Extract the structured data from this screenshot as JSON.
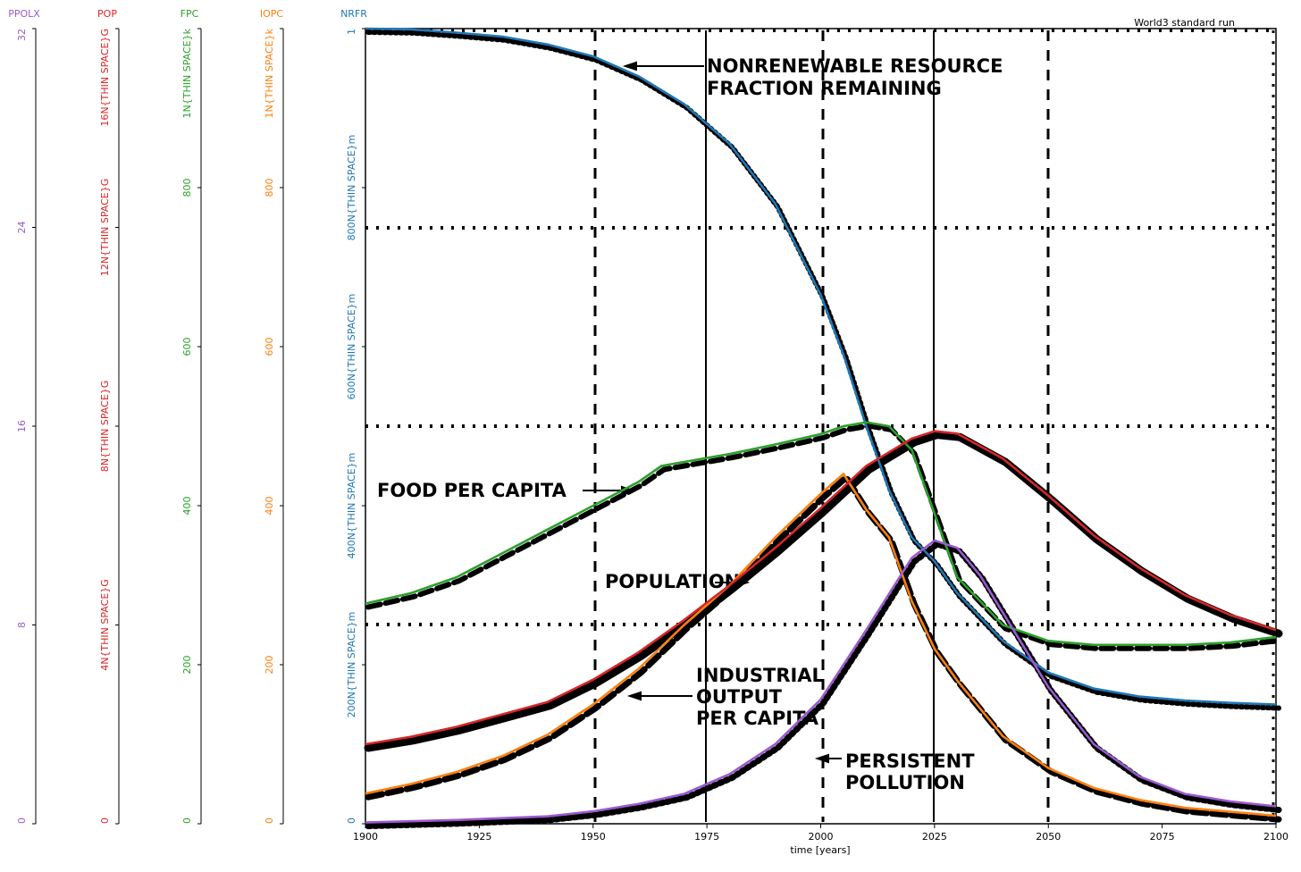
{
  "chart_data": {
    "type": "line",
    "title": "World3 standard run",
    "xlabel": "time [years]",
    "xlim": [
      1900,
      2100
    ],
    "x_ticks": [
      "1900",
      "1925",
      "1950",
      "1975",
      "2000",
      "2025",
      "2050",
      "2075",
      "2100"
    ],
    "grid": true,
    "axes": [
      {
        "name": "PPOLX",
        "color": "#9b59d0",
        "ylim": [
          0,
          32
        ],
        "ticks": [
          "0",
          "8",
          "16",
          "24",
          "32"
        ]
      },
      {
        "name": "POP",
        "color": "#d62728",
        "ylim": [
          0,
          16000000000
        ],
        "ticks": [
          "0",
          "4N{THIN SPACE}G",
          "8N{THIN SPACE}G",
          "12N{THIN SPACE}G",
          "16N{THIN SPACE}G"
        ]
      },
      {
        "name": "FPC",
        "color": "#2ca02c",
        "ylim": [
          0,
          1000
        ],
        "ticks": [
          "0",
          "200",
          "400",
          "600",
          "800",
          "1N{THIN SPACE}k"
        ]
      },
      {
        "name": "IOPC",
        "color": "#ff7f0e",
        "ylim": [
          0,
          1000
        ],
        "ticks": [
          "0",
          "200",
          "400",
          "600",
          "800",
          "1N{THIN SPACE}k"
        ]
      },
      {
        "name": "NRFR",
        "color": "#1f77b4",
        "ylim": [
          0,
          1
        ],
        "ticks": [
          "0",
          "200N{THIN SPACE}m",
          "400N{THIN SPACE}m",
          "600N{THIN SPACE}m",
          "800N{THIN SPACE}m",
          "1"
        ]
      }
    ],
    "series": [
      {
        "name": "NRFR",
        "axis": 4,
        "color": "#1f77b4",
        "x": [
          1900,
          1910,
          1920,
          1930,
          1940,
          1950,
          1960,
          1970,
          1980,
          1990,
          2000,
          2005,
          2010,
          2015,
          2020,
          2025,
          2030,
          2040,
          2050,
          2060,
          2070,
          2080,
          2090,
          2100
        ],
        "values": [
          1.0,
          0.999,
          0.995,
          0.99,
          0.98,
          0.965,
          0.94,
          0.905,
          0.855,
          0.78,
          0.665,
          0.59,
          0.5,
          0.42,
          0.36,
          0.33,
          0.29,
          0.23,
          0.19,
          0.17,
          0.16,
          0.155,
          0.152,
          0.15
        ]
      },
      {
        "name": "FPC",
        "axis": 2,
        "color": "#2ca02c",
        "x": [
          1900,
          1910,
          1920,
          1930,
          1940,
          1950,
          1960,
          1965,
          1970,
          1980,
          1990,
          2000,
          2005,
          2010,
          2015,
          2020,
          2025,
          2030,
          2040,
          2050,
          2060,
          2070,
          2080,
          2090,
          2100
        ],
        "values": [
          277,
          290,
          310,
          340,
          370,
          400,
          430,
          450,
          455,
          465,
          477,
          490,
          500,
          505,
          500,
          470,
          390,
          310,
          250,
          230,
          225,
          225,
          225,
          228,
          235
        ]
      },
      {
        "name": "IOPC",
        "axis": 3,
        "color": "#ff7f0e",
        "x": [
          1900,
          1910,
          1920,
          1930,
          1940,
          1950,
          1960,
          1970,
          1980,
          1990,
          2000,
          2005,
          2010,
          2015,
          2020,
          2025,
          2030,
          2040,
          2050,
          2060,
          2070,
          2080,
          2090,
          2100
        ],
        "values": [
          38,
          50,
          65,
          85,
          112,
          150,
          195,
          250,
          300,
          360,
          415,
          440,
          395,
          360,
          280,
          220,
          180,
          110,
          70,
          45,
          30,
          20,
          15,
          10
        ]
      },
      {
        "name": "POP",
        "axis": 1,
        "color": "#d62728",
        "x": [
          1900,
          1910,
          1920,
          1930,
          1940,
          1950,
          1960,
          1970,
          1980,
          1990,
          2000,
          2010,
          2020,
          2025,
          2030,
          2040,
          2050,
          2060,
          2070,
          2080,
          2090,
          2100
        ],
        "values": [
          1600000000,
          1750000000,
          1950000000,
          2200000000,
          2450000000,
          2900000000,
          3450000000,
          4100000000,
          4800000000,
          5550000000,
          6350000000,
          7200000000,
          7750000000,
          7900000000,
          7850000000,
          7350000000,
          6600000000,
          5800000000,
          5150000000,
          4600000000,
          4200000000,
          3900000000
        ]
      },
      {
        "name": "PPOLX",
        "axis": 0,
        "color": "#9b59d0",
        "x": [
          1900,
          1920,
          1940,
          1950,
          1960,
          1970,
          1980,
          1990,
          2000,
          2010,
          2020,
          2025,
          2030,
          2035,
          2040,
          2050,
          2060,
          2070,
          2080,
          2090,
          2100
        ],
        "values": [
          0.05,
          0.15,
          0.3,
          0.5,
          0.8,
          1.2,
          2.0,
          3.2,
          5.0,
          7.8,
          10.7,
          11.4,
          11.1,
          10.0,
          8.5,
          5.5,
          3.2,
          1.9,
          1.2,
          0.9,
          0.7
        ]
      }
    ],
    "annotations": [
      "NONRENEWABLE RESOURCE",
      "FRACTION REMAINING",
      "FOOD PER CAPITA",
      "POPULATION",
      "INDUSTRIAL",
      "OUTPUT",
      "PER CAPITA",
      "PERSISTENT",
      "POLLUTION"
    ]
  }
}
